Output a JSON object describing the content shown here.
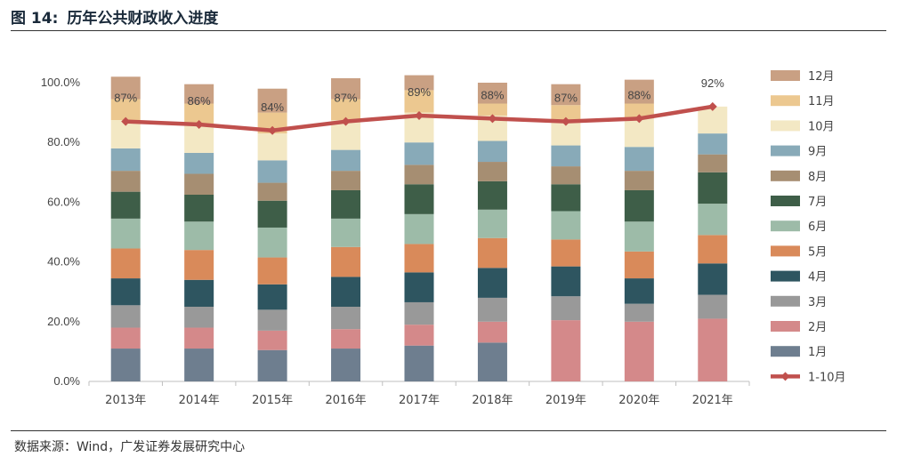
{
  "figure": {
    "label": "图 14:",
    "title": "历年公共财政收入进度"
  },
  "source": "数据来源：Wind，广发证券发展研究中心",
  "chart_data": {
    "type": "bar",
    "stacked": true,
    "title": "历年公共财政收入进度",
    "xlabel": "",
    "ylabel": "",
    "ylim": [
      0,
      100
    ],
    "yticks": [
      "0.0%",
      "20.0%",
      "40.0%",
      "60.0%",
      "80.0%",
      "100.0%"
    ],
    "ytick_values": [
      0,
      20,
      40,
      60,
      80,
      100
    ],
    "categories": [
      "2013年",
      "2014年",
      "2015年",
      "2016年",
      "2017年",
      "2018年",
      "2019年",
      "2020年",
      "2021年"
    ],
    "series": [
      {
        "name": "1月",
        "color": "#6e7e8f",
        "values": [
          11,
          11,
          10.5,
          11,
          12,
          13,
          0,
          0,
          0
        ]
      },
      {
        "name": "2月",
        "color": "#d4898a",
        "values": [
          7,
          7,
          6.5,
          6.5,
          7,
          7,
          20.5,
          20,
          21
        ]
      },
      {
        "name": "3月",
        "color": "#999999",
        "values": [
          7.5,
          7,
          7,
          7.5,
          7.5,
          8,
          8,
          6,
          8
        ]
      },
      {
        "name": "4月",
        "color": "#2e5560",
        "values": [
          9,
          9,
          8.5,
          10,
          10,
          10,
          10,
          8.5,
          10.5
        ]
      },
      {
        "name": "5月",
        "color": "#d98a5a",
        "values": [
          10,
          10,
          9,
          10,
          9.5,
          10,
          9,
          9,
          9.5
        ]
      },
      {
        "name": "6月",
        "color": "#9dbba8",
        "values": [
          10,
          9.5,
          10,
          9.5,
          10,
          9.5,
          9.5,
          10,
          10.5
        ]
      },
      {
        "name": "7月",
        "color": "#3e5e48",
        "values": [
          9,
          9,
          9,
          9.5,
          10,
          9.5,
          9,
          10.5,
          10.5
        ]
      },
      {
        "name": "8月",
        "color": "#a68e72",
        "values": [
          7,
          7,
          6,
          6.5,
          6.5,
          6.5,
          6,
          6.5,
          6
        ]
      },
      {
        "name": "9月",
        "color": "#88aab8",
        "values": [
          7.5,
          7,
          7.5,
          7,
          7.5,
          7,
          7,
          8,
          7
        ]
      },
      {
        "name": "10月",
        "color": "#f3e8c4",
        "values": [
          9.5,
          9.5,
          9,
          10,
          10,
          8.5,
          8.5,
          9.5,
          9
        ]
      },
      {
        "name": "11月",
        "color": "#ecc890",
        "values": [
          7,
          7,
          7,
          7,
          7.5,
          4,
          5,
          5,
          0
        ]
      },
      {
        "name": "12月",
        "color": "#c9a083",
        "values": [
          7.5,
          6.5,
          8,
          7,
          5,
          7,
          7,
          8,
          0
        ]
      }
    ],
    "line": {
      "name": "1-10月",
      "color": "#c0504d",
      "values": [
        87,
        86,
        84,
        87,
        89,
        88,
        87,
        88,
        92
      ],
      "labels": [
        "87%",
        "86%",
        "84%",
        "87%",
        "89%",
        "88%",
        "87%",
        "88%",
        "92%"
      ]
    },
    "legend_position": "right"
  }
}
